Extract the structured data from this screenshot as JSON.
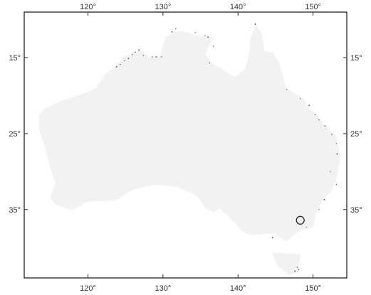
{
  "map": {
    "projection": "equirectangular",
    "region": "Australia",
    "lon_range": [
      111.5,
      154.5
    ],
    "lat_range": [
      9,
      44
    ],
    "land_color": "#f2f2f2",
    "coast_mark_color": "#444444",
    "frame_color": "#222222",
    "background_color": "#ffffff"
  },
  "axes": {
    "top_ticks": [
      {
        "value": 120,
        "label": "120°"
      },
      {
        "value": 130,
        "label": "130°"
      },
      {
        "value": 140,
        "label": "140°"
      },
      {
        "value": 150,
        "label": "150°"
      }
    ],
    "bottom_ticks": [
      {
        "value": 120,
        "label": "120°"
      },
      {
        "value": 130,
        "label": "130°"
      },
      {
        "value": 140,
        "label": "140°"
      },
      {
        "value": 150,
        "label": "150°"
      }
    ],
    "left_ticks": [
      {
        "value": 15,
        "label": "15°"
      },
      {
        "value": 25,
        "label": "25°"
      },
      {
        "value": 35,
        "label": "35°"
      }
    ],
    "right_ticks": [
      {
        "value": 15,
        "label": "15°"
      },
      {
        "value": 25,
        "label": "25°"
      },
      {
        "value": 35,
        "label": "35°"
      }
    ]
  },
  "marker": {
    "name": "location-marker",
    "lon": 148.3,
    "lat": 36.4,
    "shape": "open-circle",
    "color": "#222222"
  }
}
